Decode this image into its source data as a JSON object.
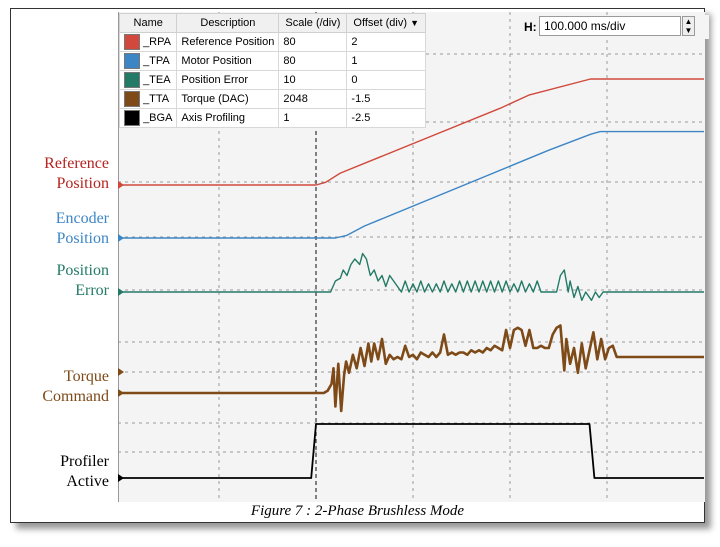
{
  "legend": {
    "headers": {
      "name": "Name",
      "description": "Description",
      "scale": "Scale (/div)",
      "offset": "Offset (div)"
    },
    "rows": [
      {
        "name": "_RPA",
        "description": "Reference Position",
        "scale": "80",
        "offset": "2",
        "color": "#d0493c"
      },
      {
        "name": "_TPA",
        "description": "Motor Position",
        "scale": "80",
        "offset": "1",
        "color": "#3d86c6"
      },
      {
        "name": "_TEA",
        "description": "Position Error",
        "scale": "10",
        "offset": "0",
        "color": "#237a66"
      },
      {
        "name": "_TTA",
        "description": "Torque (DAC)",
        "scale": "2048",
        "offset": "-1.5",
        "color": "#7d4a18"
      },
      {
        "name": "_BGA",
        "description": "Axis Profiling",
        "scale": "1",
        "offset": "-2.5",
        "color": "#000000"
      }
    ]
  },
  "timebase": {
    "label": "H:",
    "value": "100.000 ms/div"
  },
  "labels": {
    "reference": [
      "Reference",
      "Position"
    ],
    "encoder": [
      "Encoder",
      "Position"
    ],
    "error": [
      "Position",
      "Error"
    ],
    "torque": [
      "Torque",
      "Command"
    ],
    "profiler": [
      "Profiler",
      "Active"
    ]
  },
  "caption": "Figure 7 : 2-Phase Brushless Mode",
  "chart_data": {
    "type": "line",
    "x_unit": "ms",
    "x_scale_per_div": 100,
    "xlim": [
      0,
      600
    ],
    "grid": true,
    "series": [
      {
        "name": "_RPA",
        "color": "#d0493c",
        "points": [
          [
            0,
            0
          ],
          [
            200,
            0
          ],
          [
            210,
            0.1
          ],
          [
            225,
            0.45
          ],
          [
            390,
            2.9
          ],
          [
            420,
            3.4
          ],
          [
            483,
            4.0
          ],
          [
            600,
            4.0
          ]
        ]
      },
      {
        "name": "_TPA",
        "color": "#3d86c6",
        "points": [
          [
            0,
            0
          ],
          [
            220,
            0
          ],
          [
            232,
            0.1
          ],
          [
            250,
            0.45
          ],
          [
            400,
            2.7
          ],
          [
            440,
            3.3
          ],
          [
            483,
            3.9
          ],
          [
            493,
            4.0
          ],
          [
            600,
            4.0
          ]
        ]
      },
      {
        "name": "_TEA",
        "color": "#237a66",
        "points": [
          [
            0,
            0
          ],
          [
            215,
            0
          ],
          [
            220,
            0.2
          ],
          [
            225,
            0.25
          ],
          [
            228,
            0.4
          ],
          [
            232,
            0.3
          ],
          [
            236,
            0.5
          ],
          [
            240,
            0.6
          ],
          [
            245,
            0.5
          ],
          [
            248,
            0.7
          ],
          [
            252,
            0.6
          ],
          [
            256,
            0.3
          ],
          [
            260,
            0.4
          ],
          [
            264,
            0.2
          ],
          [
            268,
            0.3
          ],
          [
            272,
            0.1
          ],
          [
            276,
            0.3
          ],
          [
            280,
            0.2
          ],
          [
            284,
            0.1
          ],
          [
            288,
            0
          ],
          [
            292,
            0.2
          ],
          [
            296,
            0
          ],
          [
            300,
            0.15
          ],
          [
            304,
            0
          ],
          [
            308,
            0.2
          ],
          [
            312,
            0
          ],
          [
            316,
            0.15
          ],
          [
            320,
            0
          ],
          [
            324,
            0.15
          ],
          [
            328,
            0
          ],
          [
            332,
            0.2
          ],
          [
            336,
            0
          ],
          [
            340,
            0.15
          ],
          [
            344,
            0
          ],
          [
            348,
            0.2
          ],
          [
            352,
            0
          ],
          [
            356,
            0.2
          ],
          [
            360,
            0
          ],
          [
            364,
            0.2
          ],
          [
            368,
            0
          ],
          [
            372,
            0.2
          ],
          [
            376,
            0
          ],
          [
            380,
            0.2
          ],
          [
            384,
            0
          ],
          [
            388,
            0.2
          ],
          [
            392,
            0
          ],
          [
            396,
            0.2
          ],
          [
            400,
            0
          ],
          [
            404,
            0.15
          ],
          [
            408,
            0
          ],
          [
            412,
            0.2
          ],
          [
            416,
            0
          ],
          [
            420,
            0.15
          ],
          [
            424,
            0
          ],
          [
            428,
            0.2
          ],
          [
            432,
            0
          ],
          [
            436,
            0
          ],
          [
            440,
            0
          ],
          [
            448,
            0
          ],
          [
            452,
            0.3
          ],
          [
            456,
            0.4
          ],
          [
            460,
            0
          ],
          [
            462,
            0.2
          ],
          [
            466,
            -0.1
          ],
          [
            470,
            0.1
          ],
          [
            474,
            -0.15
          ],
          [
            478,
            0
          ],
          [
            484,
            -0.15
          ],
          [
            488,
            0
          ],
          [
            492,
            -0.1
          ],
          [
            496,
            0
          ],
          [
            600,
            0
          ]
        ]
      },
      {
        "name": "_TTA",
        "color": "#7d4a18",
        "points": [
          [
            0,
            0
          ],
          [
            208,
            0
          ],
          [
            212,
            0.05
          ],
          [
            216,
            0.2
          ],
          [
            218,
            0.55
          ],
          [
            220,
            -0.3
          ],
          [
            223,
            0.65
          ],
          [
            226,
            -0.4
          ],
          [
            229,
            0.4
          ],
          [
            231,
            0.7
          ],
          [
            234,
            0.45
          ],
          [
            238,
            0.85
          ],
          [
            242,
            0.55
          ],
          [
            246,
            1.0
          ],
          [
            250,
            0.6
          ],
          [
            254,
            1.1
          ],
          [
            257,
            0.7
          ],
          [
            260,
            1.1
          ],
          [
            264,
            0.75
          ],
          [
            268,
            1.2
          ],
          [
            272,
            0.65
          ],
          [
            276,
            0.85
          ],
          [
            280,
            0.75
          ],
          [
            284,
            0.8
          ],
          [
            288,
            0.75
          ],
          [
            292,
            1.05
          ],
          [
            296,
            0.8
          ],
          [
            300,
            0.85
          ],
          [
            304,
            0.75
          ],
          [
            308,
            0.9
          ],
          [
            312,
            0.85
          ],
          [
            316,
            0.8
          ],
          [
            320,
            0.9
          ],
          [
            324,
            0.8
          ],
          [
            328,
            0.9
          ],
          [
            332,
            1.3
          ],
          [
            336,
            0.85
          ],
          [
            340,
            0.9
          ],
          [
            344,
            0.85
          ],
          [
            348,
            0.9
          ],
          [
            352,
            0.9
          ],
          [
            356,
            0.85
          ],
          [
            360,
            0.95
          ],
          [
            364,
            0.9
          ],
          [
            368,
            0.95
          ],
          [
            372,
            0.9
          ],
          [
            376,
            1.0
          ],
          [
            380,
            0.95
          ],
          [
            384,
            1.05
          ],
          [
            388,
            1.0
          ],
          [
            392,
            0.95
          ],
          [
            396,
            1.4
          ],
          [
            400,
            1.0
          ],
          [
            404,
            1.4
          ],
          [
            408,
            1.45
          ],
          [
            412,
            1.4
          ],
          [
            416,
            1.05
          ],
          [
            420,
            1.4
          ],
          [
            424,
            1.0
          ],
          [
            428,
            1.0
          ],
          [
            432,
            1.05
          ],
          [
            436,
            1.0
          ],
          [
            440,
            1.0
          ],
          [
            444,
            1.3
          ],
          [
            448,
            1.45
          ],
          [
            452,
            1.5
          ],
          [
            456,
            0.5
          ],
          [
            458,
            1.2
          ],
          [
            462,
            0.65
          ],
          [
            466,
            1.0
          ],
          [
            470,
            0.45
          ],
          [
            474,
            1.1
          ],
          [
            478,
            0.55
          ],
          [
            482,
            0.95
          ],
          [
            486,
            1.35
          ],
          [
            490,
            0.75
          ],
          [
            494,
            1.2
          ],
          [
            498,
            0.75
          ],
          [
            502,
            1.0
          ],
          [
            506,
            1.05
          ],
          [
            510,
            0.8
          ],
          [
            514,
            0.8
          ],
          [
            600,
            0.8
          ]
        ]
      },
      {
        "name": "_BGA",
        "color": "#000000",
        "points": [
          [
            0,
            0
          ],
          [
            195,
            0
          ],
          [
            200,
            1
          ],
          [
            482,
            1
          ],
          [
            487,
            0
          ],
          [
            600,
            0
          ]
        ]
      }
    ]
  }
}
